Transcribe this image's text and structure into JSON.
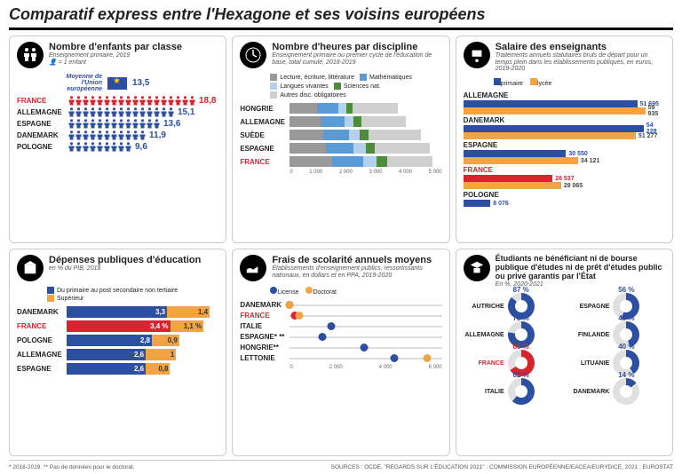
{
  "title": "Comparatif express entre l'Hexagone et ses voisins européens",
  "colors": {
    "france": "#d9232e",
    "blue_dark": "#2d4fa2",
    "blue_med": "#5a9bd5",
    "blue_light": "#b3d1ed",
    "orange": "#f2a444",
    "grey": "#999999",
    "grey_light": "#cfcfcf",
    "green": "#4c8c3a",
    "green_light": "#a9d6a1",
    "track": "#dddddd"
  },
  "panel1": {
    "title": "Nombre d'enfants par classe",
    "subtitle": "Enseignement primaire, 2019",
    "unit": "= 1 enfant",
    "eu_label": "Moyenne de l'Union européenne",
    "eu_value": "13,5",
    "rows": [
      {
        "label": "FRANCE",
        "value": 18.8,
        "text": "18,8",
        "color": "#d9232e"
      },
      {
        "label": "ALLEMAGNE",
        "value": 15.1,
        "text": "15,1",
        "color": "#2d4fa2"
      },
      {
        "label": "ESPAGNE",
        "value": 13.6,
        "text": "13,6",
        "color": "#2d4fa2"
      },
      {
        "label": "DANEMARK",
        "value": 11.9,
        "text": "11,9",
        "color": "#2d4fa2"
      },
      {
        "label": "POLOGNE",
        "value": 9.6,
        "text": "9,6",
        "color": "#2d4fa2"
      }
    ]
  },
  "panel2": {
    "title": "Nombre d'heures par discipline",
    "subtitle": "Enseignement primaire ou premier cycle de l'éducation de base, total cumulé, 2018-2019",
    "legends": [
      {
        "label": "Lecture, écriture, littérature",
        "color": "#999999"
      },
      {
        "label": "Mathématiques",
        "color": "#5a9bd5"
      },
      {
        "label": "Langues vivantes",
        "color": "#b3d1ed"
      },
      {
        "label": "Sciences nat.",
        "color": "#4c8c3a"
      },
      {
        "label": "Autres disc. obligatoires",
        "color": "#cfcfcf"
      }
    ],
    "xmax": 5000,
    "xticks": [
      "0",
      "1 000",
      "2 000",
      "3 000",
      "4 000",
      "5 000"
    ],
    "rows": [
      {
        "label": "HONGRIE",
        "segs": [
          900,
          700,
          250,
          200,
          1500
        ]
      },
      {
        "label": "ALLEMAGNE",
        "segs": [
          1000,
          800,
          300,
          250,
          1450
        ]
      },
      {
        "label": "SUÈDE",
        "segs": [
          1100,
          850,
          350,
          300,
          1700
        ]
      },
      {
        "label": "ESPAGNE",
        "segs": [
          1200,
          900,
          400,
          300,
          1800
        ]
      },
      {
        "label": "FRANCE",
        "segs": [
          1400,
          1000,
          450,
          350,
          1500
        ]
      }
    ]
  },
  "panel3": {
    "title": "Salaire des enseignants",
    "subtitle": "Traitements annuels statutaires bruts de départ pour un temps plein dans les établissements publiques, en euros, 2019-2020",
    "legends": [
      {
        "label": "primaire",
        "color": "#2d4fa2"
      },
      {
        "label": "lycée",
        "color": "#f2a444"
      }
    ],
    "xmax": 60000,
    "rows": [
      {
        "label": "ALLEMAGNE",
        "a": 51695,
        "a_text": "51 695",
        "b": 59935,
        "b_text": "59 935",
        "ca": "#2d4fa2",
        "cb": "#f2a444"
      },
      {
        "label": "DANEMARK",
        "a": 54228,
        "a_text": "54 228",
        "b": 51277,
        "b_text": "51 277",
        "ca": "#2d4fa2",
        "cb": "#f2a444"
      },
      {
        "label": "ESPAGNE",
        "a": 30550,
        "a_text": "30 550",
        "b": 34121,
        "b_text": "34 121",
        "ca": "#2d4fa2",
        "cb": "#f2a444"
      },
      {
        "label": "FRANCE",
        "a": 26537,
        "a_text": "26 537",
        "b": 29065,
        "b_text": "29 065",
        "ca": "#d9232e",
        "cb": "#f2a444"
      },
      {
        "label": "POLOGNE",
        "a": 8076,
        "a_text": "8 076",
        "b": 0,
        "b_text": "",
        "ca": "#2d4fa2",
        "cb": "#f2a444"
      }
    ]
  },
  "panel4": {
    "title": "Dépenses publiques d'éducation",
    "subtitle": "en % du PIB, 2018",
    "legends": [
      {
        "label": "Du primaire au post secondaire non tertiaire",
        "color": "#2d4fa2"
      },
      {
        "label": "Supérieur",
        "color": "#f2a444"
      }
    ],
    "xmax": 5.0,
    "rows": [
      {
        "label": "DANEMARK",
        "a": 3.3,
        "a_text": "3,3",
        "b": 1.4,
        "b_text": "1,4",
        "ca": "#2d4fa2",
        "cb": "#f2a444"
      },
      {
        "label": "FRANCE",
        "a": 3.4,
        "a_text": "3,4 %",
        "b": 1.1,
        "b_text": "1,1 %",
        "ca": "#d9232e",
        "cb": "#f2a444"
      },
      {
        "label": "POLOGNE",
        "a": 2.8,
        "a_text": "2,8",
        "b": 0.9,
        "b_text": "0,9",
        "ca": "#2d4fa2",
        "cb": "#f2a444"
      },
      {
        "label": "ALLEMAGNE",
        "a": 2.6,
        "a_text": "2,6",
        "b": 1.0,
        "b_text": "1",
        "ca": "#2d4fa2",
        "cb": "#f2a444"
      },
      {
        "label": "ESPAGNE",
        "a": 2.6,
        "a_text": "2,6",
        "b": 0.8,
        "b_text": "0,8",
        "ca": "#2d4fa2",
        "cb": "#f2a444"
      }
    ]
  },
  "panel5": {
    "title": "Frais de scolarité annuels moyens",
    "subtitle": "Établissements d'enseignement publics, ressortissants nationaux, en dollars et en PPA, 2019-2020",
    "legends": [
      {
        "label": "License",
        "color": "#2d4fa2"
      },
      {
        "label": "Doctorat",
        "color": "#f2a444"
      }
    ],
    "xmax": 7000,
    "xticks": [
      "0",
      "2 000",
      "4 000",
      "6 000"
    ],
    "rows": [
      {
        "label": "DANEMARK",
        "a": 0,
        "b": 0
      },
      {
        "label": "FRANCE",
        "a": 250,
        "b": 450
      },
      {
        "label": "ITALIE",
        "a": 1900,
        "b": null
      },
      {
        "label": "ESPAGNE* **",
        "a": 1500,
        "b": null
      },
      {
        "label": "HONGRIE**",
        "a": 3400,
        "b": null
      },
      {
        "label": "LETTONIE",
        "a": 4800,
        "b": 6300
      }
    ]
  },
  "panel6": {
    "title": "Étudiants ne bénéficiant ni de bourse publique d'études ni de prêt d'études public ou privé garantis par l'État",
    "subtitle": "En %, 2020-2021",
    "cells": [
      {
        "label": "AUTRICHE",
        "value": 87,
        "text": "87 %",
        "color": "#2d4fa2"
      },
      {
        "label": "ESPAGNE",
        "value": 56,
        "text": "56 %",
        "color": "#2d4fa2"
      },
      {
        "label": "ALLEMAGNE",
        "value": 78,
        "text": "78 %",
        "color": "#2d4fa2"
      },
      {
        "label": "FINLANDE",
        "value": 45,
        "text": "45 %",
        "color": "#2d4fa2"
      },
      {
        "label": "FRANCE",
        "value": 66,
        "text": "66 %",
        "color": "#d9232e"
      },
      {
        "label": "LITUANIE",
        "value": 40,
        "text": "40 %",
        "color": "#2d4fa2"
      },
      {
        "label": "ITALIE",
        "value": 62,
        "text": "62 %",
        "color": "#2d4fa2"
      },
      {
        "label": "DANEMARK",
        "value": 14,
        "text": "14 %",
        "color": "#2d4fa2"
      }
    ]
  },
  "footer": {
    "note": "* 2018-2019. ** Pas de données pour le doctorat.",
    "sources": "SOURCES : OCDE, \"REGARDS SUR L'ÉDUCATION 2021\" ; COMMISSION EUROPÉENNE/EACEA/EURYDICE, 2021 ; EUROSTAT"
  }
}
